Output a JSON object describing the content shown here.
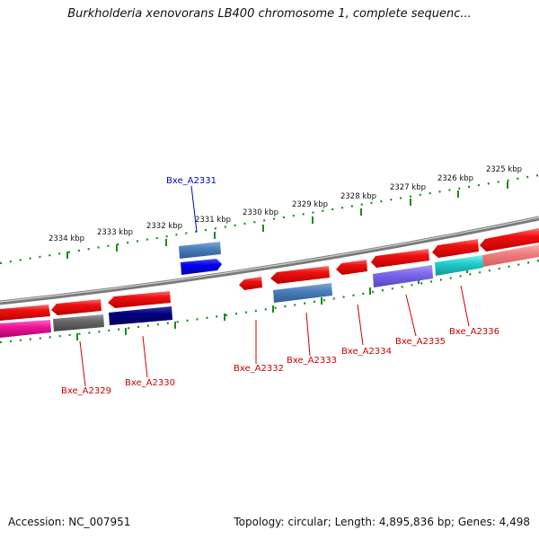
{
  "title": "Burkholderia xenovorans LB400 chromosome 1, complete sequenc...",
  "footer": {
    "accession": "Accession: NC_007951",
    "summary": "Topology: circular; Length: 4,895,836 bp; Genes: 4,498"
  },
  "colors": {
    "backbone": "#888888",
    "tick": "#1a8a1a",
    "red_gene": "#ee1111",
    "label_red": "#cc0000",
    "label_blue": "#0000cc"
  },
  "scale_labels": [
    "2325 kbp",
    "2326 kbp",
    "2327 kbp",
    "2328 kbp",
    "2329 kbp",
    "2330 kbp",
    "2331 kbp",
    "2332 kbp",
    "2333 kbp",
    "2334 kbp"
  ],
  "gene_labels": [
    {
      "name": "Bxe_A2331",
      "color": "blue"
    },
    {
      "name": "Bxe_A2329",
      "color": "red"
    },
    {
      "name": "Bxe_A2330",
      "color": "red"
    },
    {
      "name": "Bxe_A2332",
      "color": "red"
    },
    {
      "name": "Bxe_A2333",
      "color": "red"
    },
    {
      "name": "Bxe_A2334",
      "color": "red"
    },
    {
      "name": "Bxe_A2335",
      "color": "red"
    },
    {
      "name": "Bxe_A2336",
      "color": "red"
    }
  ]
}
